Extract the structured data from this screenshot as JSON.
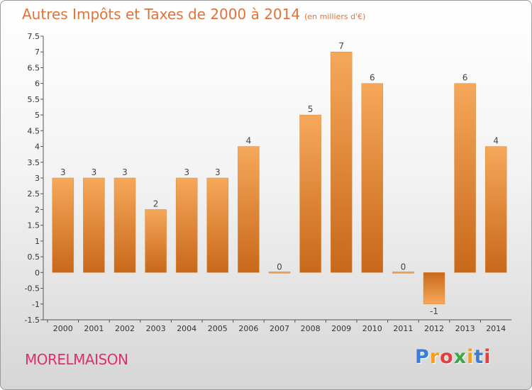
{
  "header": {
    "title": "Autres Impôts et Taxes de 2000 à 2014",
    "unit": "(en milliers d'€)"
  },
  "footer": {
    "commune": "MORELMAISON",
    "logo_letters": [
      "P",
      "r",
      "o",
      "x",
      "i",
      "t",
      "i"
    ],
    "logo_colors": [
      "#3a7dd8",
      "#f0a020",
      "#e04040",
      "#3aa845",
      "#f0a020",
      "#3a7dd8",
      "#e04040"
    ]
  },
  "chart_data": {
    "type": "bar",
    "title": "Autres Impôts et Taxes de 2000 à 2014",
    "subtitle": "(en milliers d'€)",
    "categories": [
      "2000",
      "2001",
      "2002",
      "2003",
      "2004",
      "2005",
      "2006",
      "2007",
      "2008",
      "2009",
      "2010",
      "2011",
      "2012",
      "2013",
      "2014"
    ],
    "values": [
      3,
      3,
      3,
      2,
      3,
      3,
      4,
      0,
      5,
      7,
      6,
      0,
      -1,
      6,
      4
    ],
    "value_labels": [
      "3",
      "3",
      "3",
      "2",
      "3",
      "3",
      "4",
      "0",
      "5",
      "7",
      "6",
      "0",
      "-1",
      "6",
      "4"
    ],
    "ylim": [
      -1.5,
      7.5
    ],
    "y_ticks": [
      {
        "v": 7.5,
        "label": "7.5"
      },
      {
        "v": 7,
        "label": "7"
      },
      {
        "v": 6.5,
        "label": "6.5"
      },
      {
        "v": 6,
        "label": "6"
      },
      {
        "v": 5.5,
        "label": "5.5"
      },
      {
        "v": 5,
        "label": "5"
      },
      {
        "v": 4.5,
        "label": "4.5"
      },
      {
        "v": 4,
        "label": "4"
      },
      {
        "v": 3.5,
        "label": "3.5"
      },
      {
        "v": 3,
        "label": "3"
      },
      {
        "v": 2.5,
        "label": "2.5"
      },
      {
        "v": 2,
        "label": "2"
      },
      {
        "v": 1.5,
        "label": "1.5"
      },
      {
        "v": 1,
        "label": "1"
      },
      {
        "v": 0.5,
        "label": "0.5"
      },
      {
        "v": 0,
        "label": "0"
      },
      {
        "v": -0.5,
        "label": "-0.5"
      },
      {
        "v": -1,
        "label": "-1"
      },
      {
        "v": -1.5,
        "label": "-1.5"
      }
    ],
    "grid": false,
    "legend": "none",
    "bar_color": "#f0a050",
    "bar_color_dark": "#c8681a",
    "title_color": "#e0733a",
    "commune_color": "#e0306a"
  }
}
